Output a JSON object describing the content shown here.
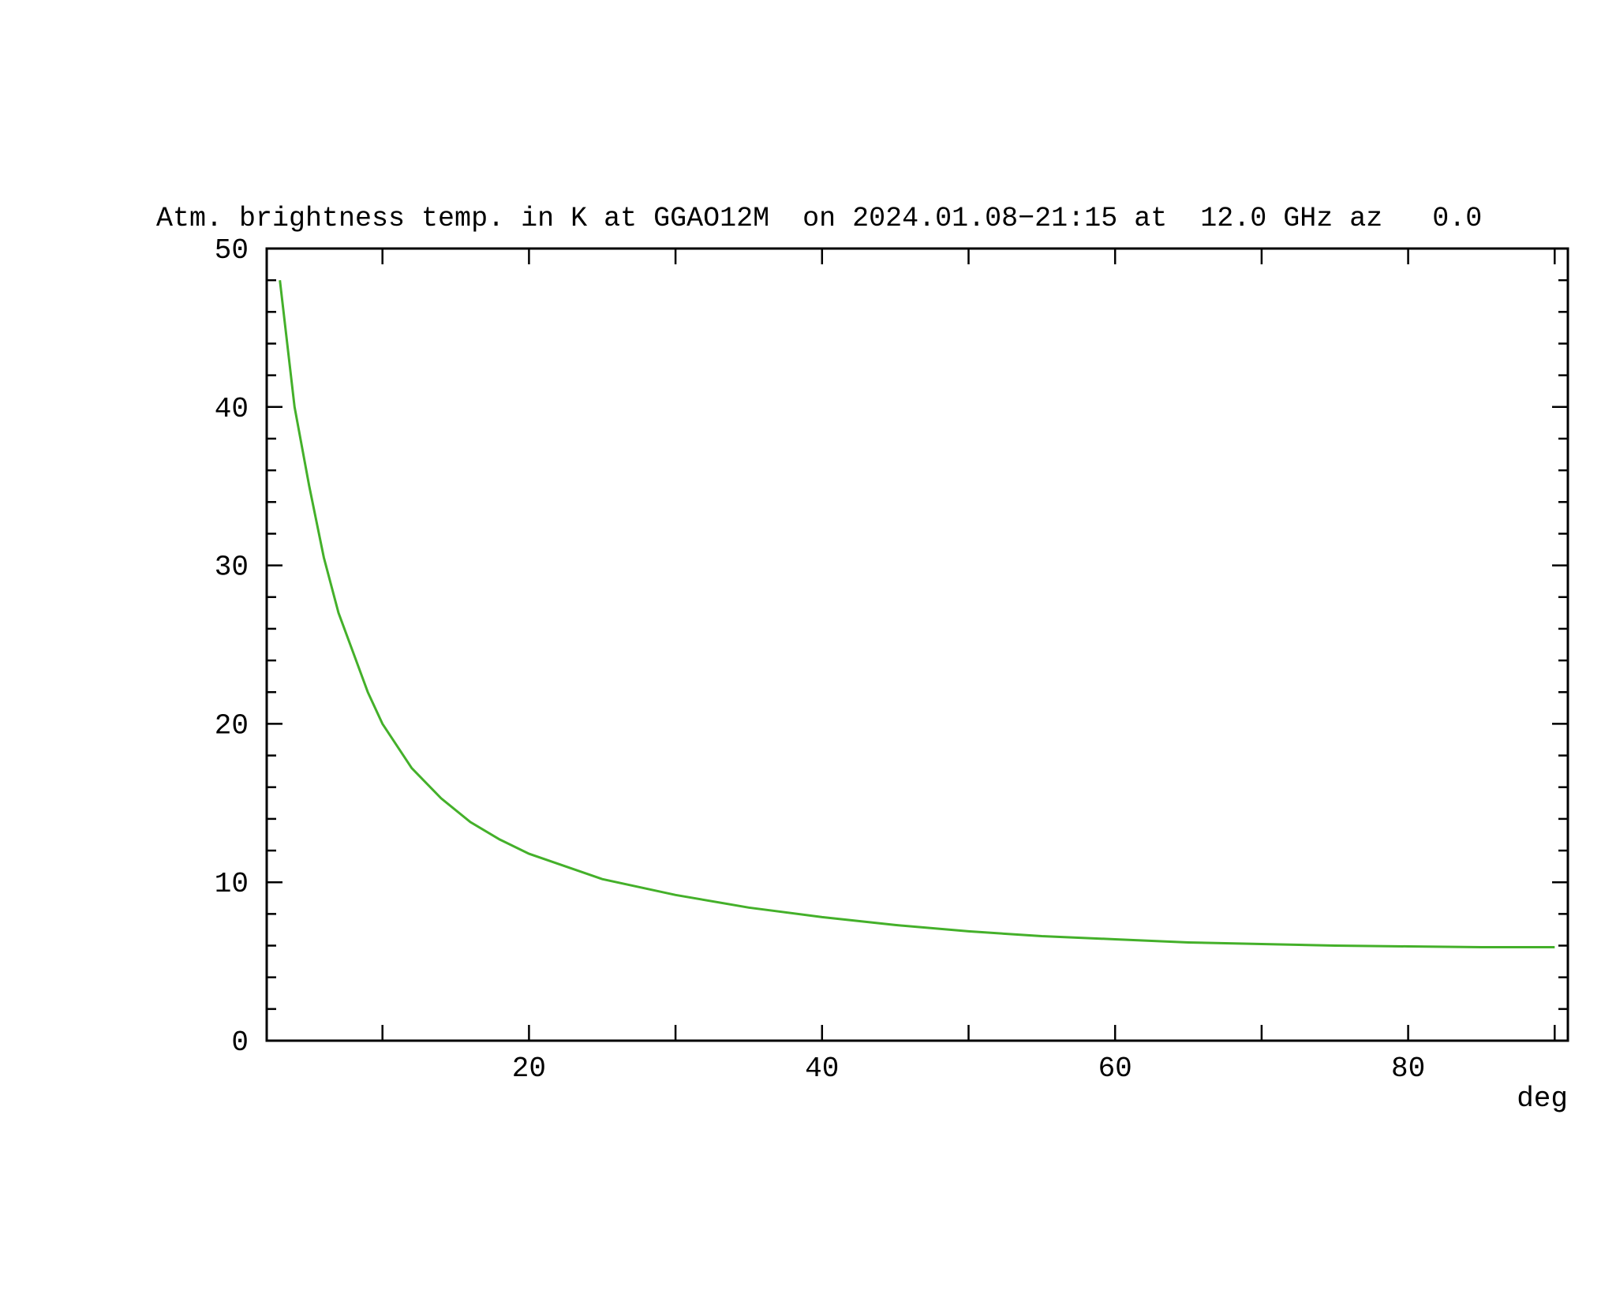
{
  "chart_data": {
    "type": "line",
    "title": "Atm. brightness temp. in K at GGAO12M  on 2024.01.08−21:15 at  12.0 GHz az   0.0",
    "x_label": "deg",
    "x": [
      3,
      4,
      5,
      6,
      7,
      8,
      9,
      10,
      12,
      14,
      16,
      18,
      20,
      25,
      30,
      35,
      40,
      45,
      50,
      55,
      60,
      65,
      70,
      75,
      80,
      85,
      90
    ],
    "series": [
      {
        "color": "#44b02a",
        "values": [
          48,
          40,
          35,
          30.5,
          27,
          24.5,
          22,
          20,
          17.2,
          15.3,
          13.8,
          12.7,
          11.8,
          10.2,
          9.2,
          8.4,
          7.8,
          7.3,
          6.9,
          6.6,
          6.4,
          6.2,
          6.1,
          6.0,
          5.95,
          5.9,
          5.9
        ]
      }
    ],
    "xlim": [
      2.1,
      90.9
    ],
    "ylim": [
      0,
      50
    ],
    "xticks": [
      20,
      40,
      60,
      80
    ],
    "yticks": [
      0,
      10,
      20,
      30,
      40,
      50
    ],
    "xminor_ticks": [
      10,
      30,
      50,
      70,
      90
    ],
    "yminor_ticks": [
      2,
      4,
      6,
      8,
      12,
      14,
      16,
      18,
      22,
      24,
      26,
      28,
      32,
      34,
      36,
      38,
      42,
      44,
      46,
      48
    ],
    "grid": false
  }
}
